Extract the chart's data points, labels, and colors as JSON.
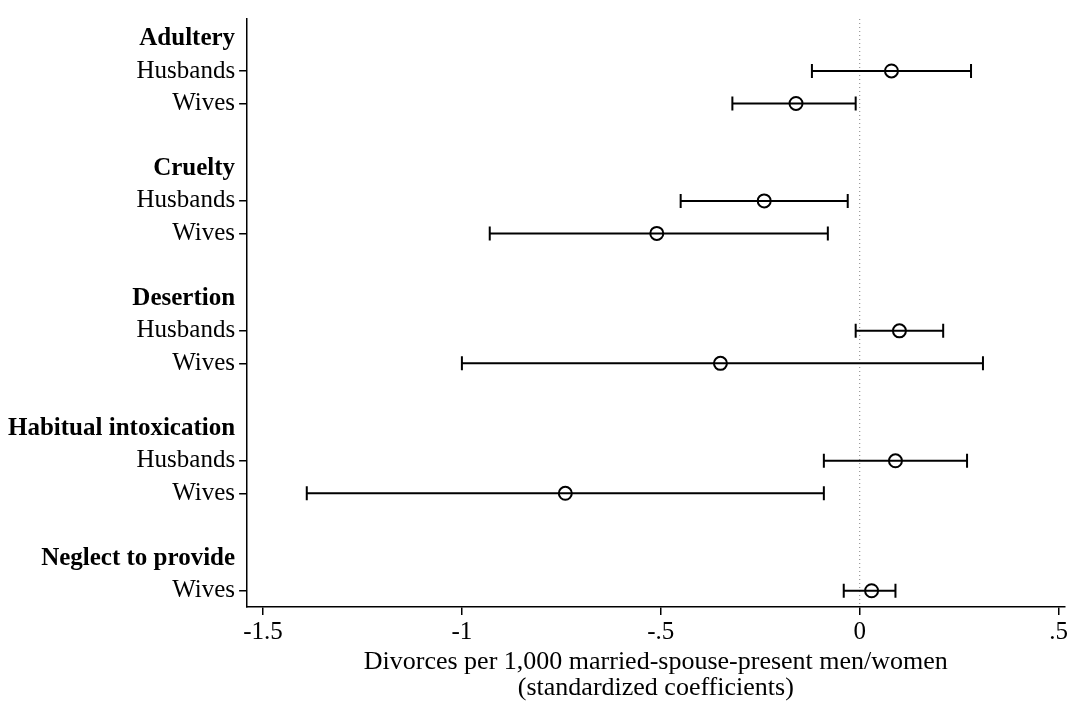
{
  "chart_data": {
    "type": "scatter",
    "orientation": "horizontal",
    "categories": [
      "Adultery",
      "Husbands",
      "Wives",
      null,
      "Cruelty",
      "Husbands",
      "Wives",
      null,
      "Desertion",
      "Husbands",
      "Wives",
      null,
      "Habitual intoxication",
      "Husbands",
      "Wives",
      null,
      "Neglect to provide",
      "Wives"
    ],
    "values": [
      null,
      0.08,
      -0.16,
      null,
      null,
      -0.24,
      -0.51,
      null,
      null,
      0.1,
      -0.35,
      null,
      null,
      0.09,
      -0.74,
      null,
      null,
      0.03
    ],
    "errors": [
      null,
      [
        -0.12,
        0.28
      ],
      [
        -0.32,
        -0.01
      ],
      null,
      null,
      [
        -0.45,
        -0.03
      ],
      [
        -0.93,
        -0.08
      ],
      null,
      null,
      [
        -0.01,
        0.21
      ],
      [
        -1.0,
        0.31
      ],
      null,
      null,
      [
        -0.09,
        0.27
      ],
      [
        -1.39,
        -0.09
      ],
      null,
      null,
      [
        -0.04,
        0.09
      ]
    ],
    "color": "#000000",
    "marker": "circle",
    "grid": false,
    "xlim": [
      -1.54,
      0.515
    ],
    "xticks": [
      {
        "value": -1.5,
        "label": "-1.5"
      },
      {
        "value": -1,
        "label": "-1"
      },
      {
        "value": -0.5,
        "label": "-.5"
      },
      {
        "value": 0,
        "label": "0"
      },
      {
        "value": 0.5,
        "label": ".5"
      }
    ],
    "xlabel": "Divorces per 1,000 married-spouse-present men/women\n(standardized coefficients)",
    "ref_lines": [
      {
        "axis": "x",
        "value": 0,
        "color": "#999999",
        "line_style": "dotted"
      }
    ]
  }
}
